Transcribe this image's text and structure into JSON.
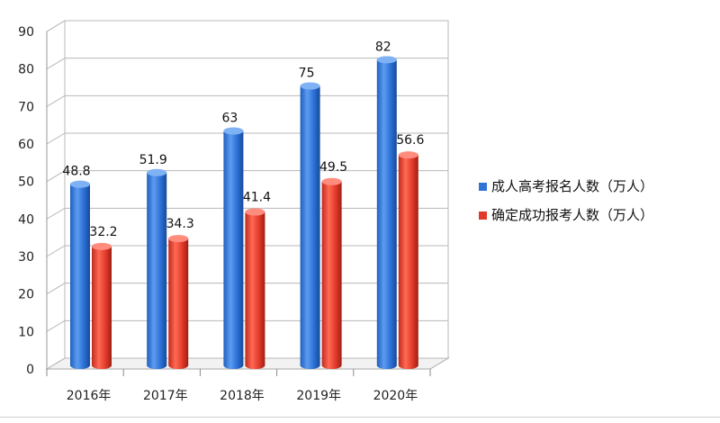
{
  "chart_data": {
    "type": "bar",
    "categories": [
      "2016年",
      "2017年",
      "2018年",
      "2019年",
      "2020年"
    ],
    "series": [
      {
        "name": "成人高考报名人数（万人）",
        "values": [
          48.8,
          51.9,
          63,
          75,
          82
        ],
        "color": "#2e75d6"
      },
      {
        "name": "确定成功报考人数（万人）",
        "values": [
          32.2,
          34.3,
          41.4,
          49.5,
          56.6
        ],
        "color": "#e23a2a"
      }
    ],
    "ylim": [
      0,
      90
    ],
    "yticks": [
      "0",
      "10",
      "20",
      "30",
      "40",
      "50",
      "60",
      "70",
      "80",
      "90"
    ],
    "value_labels": [
      [
        "48.8",
        "51.9",
        "63",
        "75",
        "82"
      ],
      [
        "32.2",
        "34.3",
        "41.4",
        "49.5",
        "56.6"
      ]
    ],
    "grid": true,
    "legend_position": "right",
    "title": "",
    "xlabel": "",
    "ylabel": ""
  }
}
